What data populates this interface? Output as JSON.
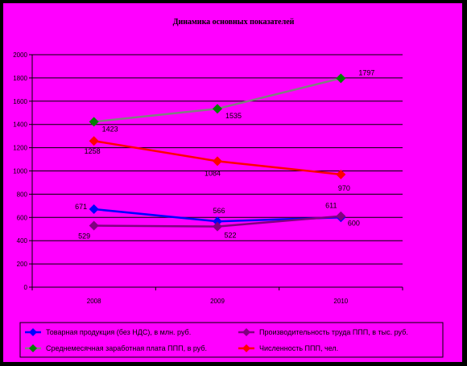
{
  "chart_data": {
    "type": "line",
    "title": "Динамика основных показателей",
    "xlabel": "",
    "ylabel": "",
    "categories": [
      "2008",
      "2009",
      "2010"
    ],
    "ylim": [
      0,
      2000
    ],
    "yticks": [
      0,
      200,
      400,
      600,
      800,
      1000,
      1200,
      1400,
      1600,
      1800,
      2000
    ],
    "grid": true,
    "legend_position": "bottom",
    "background_color": "#FF00FF",
    "frame_color": "#000000",
    "series": [
      {
        "name": "Товарная продукция (без НДС), в млн. руб.",
        "values": [
          671,
          566,
          600
        ],
        "labels": [
          "671",
          "566",
          "600"
        ],
        "color": "#0000FF"
      },
      {
        "name": "Производительность труда ППП, в тыс. руб.",
        "values": [
          529,
          522,
          611
        ],
        "labels": [
          "529",
          "522",
          "611"
        ],
        "color": "#800080"
      },
      {
        "name": "Среднемесячная заработная плата ППП, в руб.",
        "values": [
          1423,
          1535,
          1797
        ],
        "labels": [
          "1423",
          "1535",
          "1797"
        ],
        "color": "#808080",
        "marker_color": "#008000"
      },
      {
        "name": "Численность ППП, чел.",
        "values": [
          1258,
          1084,
          970
        ],
        "labels": [
          "1258",
          "1084",
          "970"
        ],
        "color": "#FF0000"
      }
    ]
  }
}
